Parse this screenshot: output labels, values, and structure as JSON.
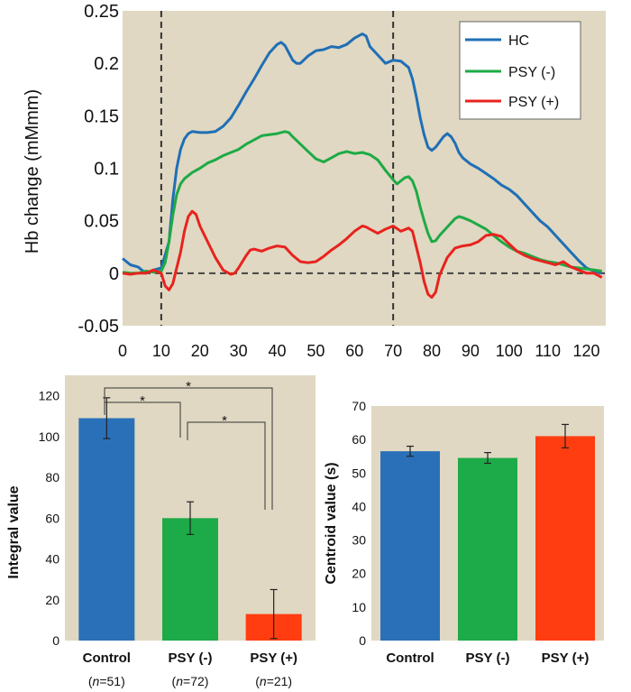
{
  "chart_data": [
    {
      "type": "line",
      "ylabel": "Hb change (mMmm)",
      "xlabel": "",
      "xlim": [
        0,
        125
      ],
      "ylim": [
        -0.05,
        0.25
      ],
      "xticks": [
        "0",
        "10",
        "20",
        "30",
        "40",
        "50",
        "60",
        "70",
        "80",
        "90",
        "100",
        "110",
        "120"
      ],
      "yticks": [
        "-0.05",
        "0",
        "0.05",
        "0.1",
        "0.15",
        "0.2",
        "0.25"
      ],
      "vlines": [
        10,
        70
      ],
      "hline": 0,
      "legend_position": "top-right",
      "series": [
        {
          "name": "HC",
          "color": "#1f6fb5",
          "points": [
            [
              0,
              0.014
            ],
            [
              2,
              0.008
            ],
            [
              4,
              0.006
            ],
            [
              6,
              0.0
            ],
            [
              8,
              0.003
            ],
            [
              10,
              0.005
            ],
            [
              12,
              0.03
            ],
            [
              13,
              0.07
            ],
            [
              14,
              0.1
            ],
            [
              15,
              0.118
            ],
            [
              16,
              0.128
            ],
            [
              17,
              0.133
            ],
            [
              18,
              0.135
            ],
            [
              20,
              0.134
            ],
            [
              22,
              0.134
            ],
            [
              24,
              0.135
            ],
            [
              26,
              0.14
            ],
            [
              28,
              0.148
            ],
            [
              30,
              0.16
            ],
            [
              32,
              0.173
            ],
            [
              34,
              0.185
            ],
            [
              36,
              0.198
            ],
            [
              38,
              0.21
            ],
            [
              40,
              0.218
            ],
            [
              41,
              0.22
            ],
            [
              42,
              0.217
            ],
            [
              43,
              0.21
            ],
            [
              44,
              0.203
            ],
            [
              45,
              0.2
            ],
            [
              46,
              0.2
            ],
            [
              48,
              0.207
            ],
            [
              50,
              0.212
            ],
            [
              52,
              0.213
            ],
            [
              54,
              0.216
            ],
            [
              56,
              0.215
            ],
            [
              58,
              0.218
            ],
            [
              60,
              0.224
            ],
            [
              62,
              0.228
            ],
            [
              63,
              0.226
            ],
            [
              64,
              0.216
            ],
            [
              66,
              0.208
            ],
            [
              68,
              0.2
            ],
            [
              70,
              0.203
            ],
            [
              72,
              0.202
            ],
            [
              74,
              0.196
            ],
            [
              75,
              0.185
            ],
            [
              76,
              0.168
            ],
            [
              77,
              0.148
            ],
            [
              78,
              0.132
            ],
            [
              79,
              0.12
            ],
            [
              80,
              0.117
            ],
            [
              81,
              0.12
            ],
            [
              82,
              0.125
            ],
            [
              83,
              0.13
            ],
            [
              84,
              0.133
            ],
            [
              85,
              0.13
            ],
            [
              86,
              0.124
            ],
            [
              87,
              0.115
            ],
            [
              88,
              0.11
            ],
            [
              90,
              0.104
            ],
            [
              92,
              0.1
            ],
            [
              94,
              0.095
            ],
            [
              96,
              0.09
            ],
            [
              98,
              0.084
            ],
            [
              100,
              0.08
            ],
            [
              102,
              0.074
            ],
            [
              104,
              0.066
            ],
            [
              106,
              0.058
            ],
            [
              108,
              0.05
            ],
            [
              110,
              0.044
            ],
            [
              112,
              0.036
            ],
            [
              114,
              0.028
            ],
            [
              116,
              0.02
            ],
            [
              118,
              0.012
            ],
            [
              120,
              0.005
            ],
            [
              122,
              0.002
            ],
            [
              124,
              0.0
            ]
          ]
        },
        {
          "name": "PSY (-)",
          "color": "#1eaa46",
          "points": [
            [
              0,
              0.001
            ],
            [
              2,
              0.0
            ],
            [
              4,
              0.0
            ],
            [
              6,
              0.002
            ],
            [
              8,
              0.001
            ],
            [
              10,
              0.002
            ],
            [
              11,
              0.01
            ],
            [
              12,
              0.03
            ],
            [
              13,
              0.055
            ],
            [
              14,
              0.075
            ],
            [
              15,
              0.085
            ],
            [
              16,
              0.09
            ],
            [
              18,
              0.096
            ],
            [
              20,
              0.1
            ],
            [
              22,
              0.105
            ],
            [
              24,
              0.108
            ],
            [
              26,
              0.112
            ],
            [
              28,
              0.115
            ],
            [
              30,
              0.118
            ],
            [
              32,
              0.123
            ],
            [
              34,
              0.127
            ],
            [
              36,
              0.131
            ],
            [
              38,
              0.132
            ],
            [
              40,
              0.133
            ],
            [
              42,
              0.135
            ],
            [
              43,
              0.134
            ],
            [
              44,
              0.13
            ],
            [
              46,
              0.123
            ],
            [
              48,
              0.116
            ],
            [
              50,
              0.109
            ],
            [
              52,
              0.106
            ],
            [
              54,
              0.11
            ],
            [
              56,
              0.114
            ],
            [
              58,
              0.116
            ],
            [
              60,
              0.114
            ],
            [
              62,
              0.115
            ],
            [
              64,
              0.113
            ],
            [
              66,
              0.108
            ],
            [
              68,
              0.098
            ],
            [
              70,
              0.089
            ],
            [
              71,
              0.085
            ],
            [
              72,
              0.088
            ],
            [
              73,
              0.091
            ],
            [
              74,
              0.092
            ],
            [
              75,
              0.088
            ],
            [
              76,
              0.078
            ],
            [
              77,
              0.063
            ],
            [
              78,
              0.05
            ],
            [
              79,
              0.038
            ],
            [
              80,
              0.03
            ],
            [
              81,
              0.031
            ],
            [
              82,
              0.036
            ],
            [
              84,
              0.044
            ],
            [
              86,
              0.052
            ],
            [
              87,
              0.054
            ],
            [
              88,
              0.053
            ],
            [
              90,
              0.05
            ],
            [
              92,
              0.046
            ],
            [
              94,
              0.042
            ],
            [
              96,
              0.036
            ],
            [
              98,
              0.03
            ],
            [
              100,
              0.025
            ],
            [
              102,
              0.021
            ],
            [
              104,
              0.019
            ],
            [
              106,
              0.016
            ],
            [
              108,
              0.013
            ],
            [
              110,
              0.011
            ],
            [
              112,
              0.01
            ],
            [
              114,
              0.008
            ],
            [
              116,
              0.006
            ],
            [
              118,
              0.005
            ],
            [
              120,
              0.004
            ],
            [
              122,
              0.003
            ],
            [
              124,
              0.002
            ]
          ]
        },
        {
          "name": "PSY (+)",
          "color": "#e8231e",
          "points": [
            [
              0,
              0.0
            ],
            [
              2,
              -0.001
            ],
            [
              4,
              0.0
            ],
            [
              6,
              0.0
            ],
            [
              8,
              0.003
            ],
            [
              10,
              0.0
            ],
            [
              11,
              -0.012
            ],
            [
              12,
              -0.016
            ],
            [
              13,
              -0.01
            ],
            [
              14,
              0.005
            ],
            [
              15,
              0.02
            ],
            [
              16,
              0.04
            ],
            [
              17,
              0.054
            ],
            [
              18,
              0.059
            ],
            [
              19,
              0.056
            ],
            [
              20,
              0.045
            ],
            [
              22,
              0.03
            ],
            [
              24,
              0.015
            ],
            [
              26,
              0.003
            ],
            [
              28,
              -0.001
            ],
            [
              29,
              0.0
            ],
            [
              30,
              0.005
            ],
            [
              32,
              0.017
            ],
            [
              33,
              0.022
            ],
            [
              34,
              0.023
            ],
            [
              36,
              0.021
            ],
            [
              38,
              0.024
            ],
            [
              40,
              0.026
            ],
            [
              42,
              0.025
            ],
            [
              44,
              0.017
            ],
            [
              46,
              0.011
            ],
            [
              48,
              0.01
            ],
            [
              50,
              0.011
            ],
            [
              52,
              0.016
            ],
            [
              54,
              0.022
            ],
            [
              56,
              0.027
            ],
            [
              58,
              0.033
            ],
            [
              60,
              0.04
            ],
            [
              62,
              0.045
            ],
            [
              63,
              0.044
            ],
            [
              64,
              0.042
            ],
            [
              66,
              0.038
            ],
            [
              68,
              0.042
            ],
            [
              70,
              0.045
            ],
            [
              72,
              0.04
            ],
            [
              74,
              0.043
            ],
            [
              75,
              0.04
            ],
            [
              76,
              0.025
            ],
            [
              77,
              0.01
            ],
            [
              78,
              -0.008
            ],
            [
              79,
              -0.02
            ],
            [
              80,
              -0.023
            ],
            [
              81,
              -0.018
            ],
            [
              82,
              -0.002
            ],
            [
              84,
              0.015
            ],
            [
              86,
              0.024
            ],
            [
              88,
              0.026
            ],
            [
              90,
              0.027
            ],
            [
              92,
              0.03
            ],
            [
              94,
              0.036
            ],
            [
              96,
              0.037
            ],
            [
              98,
              0.035
            ],
            [
              100,
              0.028
            ],
            [
              102,
              0.021
            ],
            [
              104,
              0.017
            ],
            [
              106,
              0.014
            ],
            [
              108,
              0.012
            ],
            [
              110,
              0.01
            ],
            [
              112,
              0.008
            ],
            [
              114,
              0.011
            ],
            [
              116,
              0.006
            ],
            [
              118,
              0.003
            ],
            [
              120,
              0.0
            ],
            [
              122,
              0.0
            ],
            [
              124,
              -0.004
            ]
          ]
        }
      ]
    },
    {
      "type": "bar",
      "ylabel": "Integral value",
      "ylim": [
        0,
        130
      ],
      "yticks": [
        "0",
        "20",
        "40",
        "60",
        "80",
        "100",
        "120"
      ],
      "categories": [
        "Control",
        "PSY (-)",
        "PSY (+)"
      ],
      "sample_sizes": [
        "(n=51)",
        "(n=72)",
        "(n=21)"
      ],
      "values": [
        109,
        60,
        13
      ],
      "errors": [
        10,
        8,
        12
      ],
      "colors": [
        "#2a70b8",
        "#1daa48",
        "#ff3d10"
      ],
      "significance": [
        {
          "from": "Control",
          "to": "PSY (-)",
          "label": "*"
        },
        {
          "from": "Control",
          "to": "PSY (+)",
          "label": "*"
        },
        {
          "from": "PSY (-)",
          "to": "PSY (+)",
          "label": "*"
        }
      ]
    },
    {
      "type": "bar",
      "ylabel": "Centroid value (s)",
      "ylim": [
        0,
        70
      ],
      "yticks": [
        "0",
        "10",
        "20",
        "30",
        "40",
        "50",
        "60",
        "70"
      ],
      "categories": [
        "Control",
        "PSY (-)",
        "PSY (+)"
      ],
      "values": [
        56.5,
        54.5,
        61
      ],
      "errors": [
        1.5,
        1.6,
        3.5
      ],
      "colors": [
        "#2a70b8",
        "#1daa48",
        "#ff3d10"
      ]
    }
  ]
}
